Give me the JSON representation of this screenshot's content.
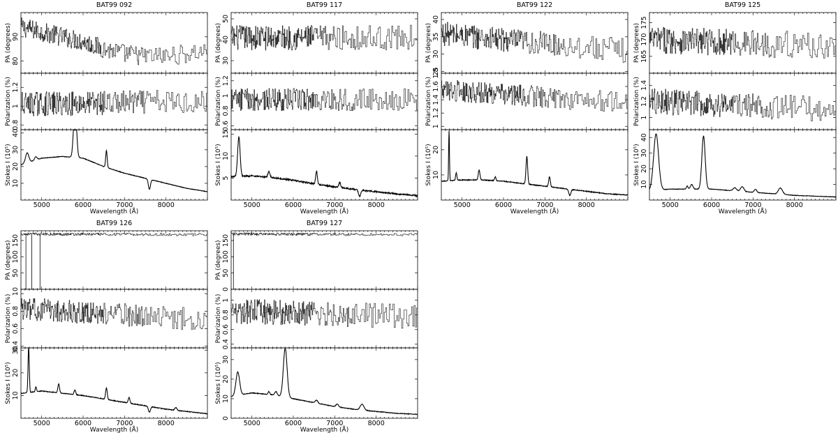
{
  "figure": {
    "x_axis": {
      "label": "Wavelength (Å)",
      "range": [
        4500,
        9000
      ],
      "ticks": [
        5000,
        6000,
        7000,
        8000
      ],
      "tick_labels": [
        "5000",
        "6000",
        "7000",
        "8000"
      ]
    },
    "row_labels": {
      "pa": "PA (degrees)",
      "pol": "Polarization (%)",
      "stokes": "Stokes I (10⁵)"
    }
  },
  "chart_data": [
    {
      "type": "line",
      "title": "BAT99 092",
      "xlim": [
        4500,
        9000
      ],
      "pa": {
        "ylim": [
          75,
          100
        ],
        "ticks": [
          80,
          90
        ],
        "tick_labels": [
          "80",
          "90"
        ],
        "noise": 4.0,
        "x": [
          4500,
          5000,
          5500,
          6000,
          6500,
          7000,
          7500,
          8000,
          8500,
          9000
        ],
        "values": [
          94,
          92,
          90,
          88,
          85,
          83,
          82,
          82,
          83,
          84
        ]
      },
      "pol": {
        "ylim": [
          0.75,
          1.35
        ],
        "ticks": [
          0.8,
          1.0,
          1.2
        ],
        "tick_labels": [
          "0.8",
          "1",
          "1.2"
        ],
        "noise": 0.13,
        "x": [
          4500,
          9000
        ],
        "values": [
          1.02,
          1.05
        ]
      },
      "stokes": {
        "ylim": [
          0,
          42
        ],
        "ticks": [
          10,
          20,
          30,
          40
        ],
        "tick_labels": [
          "10",
          "20",
          "30",
          "40"
        ],
        "x": [
          4500,
          5000,
          5500,
          6000,
          6500,
          7000,
          7500,
          8000,
          8500,
          9000
        ],
        "values": [
          21,
          25,
          26,
          25,
          20,
          16,
          13,
          10,
          7,
          5
        ],
        "lines": [
          [
            4650,
            6,
            40
          ],
          [
            4860,
            2,
            30
          ],
          [
            5805,
            33,
            35
          ],
          [
            6563,
            10,
            18
          ],
          [
            7600,
            -6,
            25
          ]
        ]
      }
    },
    {
      "type": "line",
      "title": "BAT99 117",
      "xlim": [
        4500,
        9000
      ],
      "pa": {
        "ylim": [
          24,
          53
        ],
        "ticks": [
          30,
          40,
          50
        ],
        "tick_labels": [
          "30",
          "40",
          "50"
        ],
        "noise": 6.0,
        "x": [
          4500,
          9000
        ],
        "values": [
          41,
          41
        ]
      },
      "pol": {
        "ylim": [
          0.55,
          1.3
        ],
        "ticks": [
          0.6,
          0.8,
          1.0,
          1.2
        ],
        "tick_labels": [
          "0.6",
          "0.8",
          "1",
          "1.2"
        ],
        "noise": 0.15,
        "x": [
          4500,
          9000
        ],
        "values": [
          0.95,
          0.95
        ]
      },
      "stokes": {
        "ylim": [
          0,
          16
        ],
        "ticks": [
          5,
          10,
          15
        ],
        "tick_labels": [
          "5",
          "10",
          "15"
        ],
        "x": [
          4500,
          5000,
          5500,
          6000,
          6500,
          7000,
          7500,
          8000,
          8500,
          9000
        ],
        "values": [
          5.3,
          5.5,
          5.1,
          4.5,
          3.7,
          3.0,
          2.4,
          1.9,
          1.4,
          1.0
        ],
        "lines": [
          [
            4686,
            9,
            30
          ],
          [
            5411,
            1.3,
            25
          ],
          [
            6560,
            3,
            20
          ],
          [
            7120,
            1.2,
            20
          ],
          [
            7600,
            -1.5,
            25
          ]
        ]
      }
    },
    {
      "type": "line",
      "title": "BAT99 122",
      "xlim": [
        4500,
        9000
      ],
      "pa": {
        "ylim": [
          24.5,
          42
        ],
        "ticks": [
          25,
          30,
          35,
          40
        ],
        "tick_labels": [
          "25",
          "30",
          "35",
          "40"
        ],
        "noise": 3.5,
        "x": [
          4500,
          6000,
          9000
        ],
        "values": [
          36,
          34,
          31
        ]
      },
      "pol": {
        "ylim": [
          0.95,
          1.8
        ],
        "ticks": [
          1.0,
          1.2,
          1.4,
          1.6,
          1.8
        ],
        "tick_labels": [
          "1",
          "1.2",
          "1.4",
          "1.6",
          "1.8"
        ],
        "noise": 0.16,
        "x": [
          4500,
          9000
        ],
        "values": [
          1.55,
          1.35
        ]
      },
      "stokes": {
        "ylim": [
          0,
          28
        ],
        "ticks": [
          10,
          20
        ],
        "tick_labels": [
          "10",
          "20"
        ],
        "x": [
          4500,
          5000,
          5500,
          6000,
          6500,
          7000,
          7500,
          8000,
          8500,
          9000
        ],
        "values": [
          7.5,
          8,
          8,
          7.5,
          6.5,
          5.5,
          4.5,
          3.5,
          2.5,
          2
        ],
        "lines": [
          [
            4686,
            20,
            10
          ],
          [
            4860,
            3,
            15
          ],
          [
            5411,
            4,
            20
          ],
          [
            5801,
            1.5,
            18
          ],
          [
            6563,
            11,
            20
          ],
          [
            7110,
            4,
            20
          ],
          [
            7600,
            -2.5,
            25
          ]
        ]
      }
    },
    {
      "type": "line",
      "title": "BAT99 125",
      "xlim": [
        4500,
        9000
      ],
      "pa": {
        "ylim": [
          160,
          178
        ],
        "ticks": [
          165,
          170,
          175
        ],
        "tick_labels": [
          "165",
          "170",
          "175"
        ],
        "noise": 4.0,
        "x": [
          4500,
          9000
        ],
        "values": [
          170,
          168
        ]
      },
      "pol": {
        "ylim": [
          0.85,
          1.55
        ],
        "ticks": [
          1.0,
          1.2,
          1.4
        ],
        "tick_labels": [
          "1",
          "1.2",
          "1.4"
        ],
        "noise": 0.16,
        "x": [
          4500,
          9000
        ],
        "values": [
          1.2,
          1.1
        ]
      },
      "stokes": {
        "ylim": [
          0,
          45
        ],
        "ticks": [
          10,
          20,
          30,
          40
        ],
        "tick_labels": [
          "10",
          "20",
          "30",
          "40"
        ],
        "x": [
          4500,
          5000,
          5500,
          6000,
          6500,
          7000,
          7500,
          8000,
          8500,
          9000
        ],
        "values": [
          6,
          7,
          7,
          7,
          6,
          5,
          4,
          3,
          2.5,
          2
        ],
        "lines": [
          [
            4660,
            36,
            60
          ],
          [
            5411,
            2,
            20
          ],
          [
            5520,
            3,
            30
          ],
          [
            5805,
            34,
            40
          ],
          [
            6560,
            2,
            40
          ],
          [
            6740,
            3,
            40
          ],
          [
            7060,
            2,
            30
          ],
          [
            7660,
            4,
            50
          ]
        ]
      }
    },
    {
      "type": "line",
      "title": "BAT99 126",
      "xlim": [
        4500,
        9000
      ],
      "pa": {
        "ylim": [
          0,
          180
        ],
        "ticks": [
          0,
          50,
          100,
          150
        ],
        "tick_labels": [
          "0",
          "50",
          "100",
          "150"
        ],
        "noise": 4.0,
        "x": [
          4500,
          9000
        ],
        "values": [
          170,
          168
        ],
        "spikes": [
          [
            4620,
            0
          ],
          [
            4760,
            0
          ],
          [
            4960,
            0
          ]
        ]
      },
      "pol": {
        "ylim": [
          0.38,
          1.05
        ],
        "ticks": [
          0.4,
          0.6,
          0.8,
          1.0
        ],
        "tick_labels": [
          "0.4",
          "0.6",
          "0.8",
          "1"
        ],
        "noise": 0.13,
        "x": [
          4500,
          9000
        ],
        "values": [
          0.83,
          0.7
        ]
      },
      "stokes": {
        "ylim": [
          0,
          31
        ],
        "ticks": [
          10,
          20,
          30
        ],
        "tick_labels": [
          "10",
          "20",
          "30"
        ],
        "x": [
          4500,
          5000,
          5500,
          6000,
          6500,
          7000,
          7500,
          8000,
          8500,
          9000
        ],
        "values": [
          11,
          12,
          11,
          10,
          8.5,
          7,
          5.5,
          4,
          3,
          2
        ],
        "lines": [
          [
            4686,
            20,
            15
          ],
          [
            4860,
            2,
            15
          ],
          [
            5411,
            4,
            20
          ],
          [
            5801,
            2,
            20
          ],
          [
            6563,
            5,
            20
          ],
          [
            7110,
            2.5,
            20
          ],
          [
            7600,
            -2.5,
            25
          ],
          [
            8240,
            1.2,
            25
          ]
        ]
      }
    },
    {
      "type": "line",
      "title": "BAT99 127",
      "xlim": [
        4500,
        9000
      ],
      "pa": {
        "ylim": [
          0,
          180
        ],
        "ticks": [
          0,
          50,
          100,
          150
        ],
        "tick_labels": [
          "0",
          "50",
          "100",
          "150"
        ],
        "noise": 4.0,
        "x": [
          4500,
          9000
        ],
        "values": [
          170,
          168
        ],
        "spikes": [
          [
            4555,
            0
          ]
        ]
      },
      "pol": {
        "ylim": [
          0.35,
          1.15
        ],
        "ticks": [
          0.4,
          0.6,
          0.8,
          1.0
        ],
        "tick_labels": [
          "0.4",
          "0.6",
          "0.8",
          "1"
        ],
        "noise": 0.17,
        "x": [
          4500,
          9000
        ],
        "values": [
          0.85,
          0.78
        ]
      },
      "stokes": {
        "ylim": [
          0,
          36
        ],
        "ticks": [
          0,
          10,
          20,
          30
        ],
        "tick_labels": [
          "0",
          "10",
          "20",
          "30"
        ],
        "x": [
          4500,
          5000,
          5500,
          6000,
          6500,
          7000,
          7500,
          8000,
          8500,
          9000
        ],
        "values": [
          11,
          13,
          12,
          10,
          8,
          6,
          4.5,
          3.5,
          2.5,
          2
        ],
        "lines": [
          [
            4660,
            12,
            45
          ],
          [
            5411,
            1.5,
            20
          ],
          [
            5580,
            2,
            30
          ],
          [
            5805,
            25,
            45
          ],
          [
            6560,
            1.5,
            30
          ],
          [
            7060,
            1.5,
            30
          ],
          [
            7660,
            3,
            45
          ]
        ]
      }
    }
  ]
}
